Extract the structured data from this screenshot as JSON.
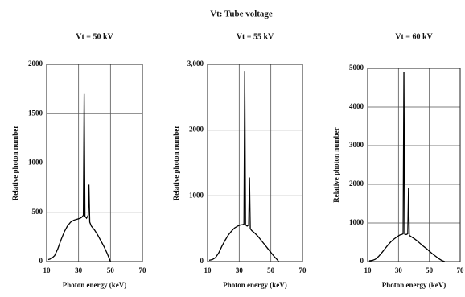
{
  "title": "Vt: Tube voltage",
  "chart_data": [
    {
      "type": "line",
      "title": "Vt = 50 kV",
      "xlabel": "Photon energy (keV)",
      "ylabel": "Relative photon number",
      "x": [
        11,
        13,
        15,
        17,
        19,
        21,
        23,
        25,
        27,
        29,
        31,
        32,
        33,
        33.5,
        34,
        35,
        36,
        36.5,
        37,
        38,
        40,
        42,
        44,
        46,
        48,
        50
      ],
      "values": [
        20,
        30,
        60,
        130,
        220,
        300,
        360,
        400,
        420,
        430,
        440,
        450,
        470,
        1700,
        460,
        440,
        470,
        780,
        400,
        360,
        320,
        270,
        210,
        150,
        80,
        0
      ],
      "color": "#000000",
      "xlim": [
        10,
        70
      ],
      "xticks": [
        10,
        30,
        50,
        70
      ],
      "ylim": [
        0,
        2000
      ],
      "yticks": [
        0,
        500,
        1000,
        1500,
        2000
      ],
      "grid": true
    },
    {
      "type": "line",
      "title": "Vt = 55 kV",
      "xlabel": "Photon energy (keV)",
      "ylabel": "Relative photon number",
      "x": [
        11,
        13,
        15,
        17,
        19,
        21,
        23,
        25,
        27,
        29,
        31,
        32,
        33,
        33.5,
        34,
        35,
        36,
        36.5,
        37,
        38,
        40,
        42,
        44,
        46,
        48,
        50,
        52,
        54,
        55
      ],
      "values": [
        20,
        30,
        60,
        130,
        230,
        320,
        400,
        460,
        510,
        540,
        560,
        560,
        570,
        2900,
        560,
        540,
        560,
        1280,
        500,
        470,
        430,
        380,
        320,
        260,
        200,
        140,
        80,
        30,
        0
      ],
      "color": "#000000",
      "xlim": [
        10,
        70
      ],
      "xticks": [
        10,
        30,
        50,
        70
      ],
      "ylim": [
        0,
        3000
      ],
      "yticks": [
        0,
        1000,
        2000,
        {
          "value": 3000,
          "label": "3,000"
        }
      ],
      "grid": true
    },
    {
      "type": "line",
      "title": "Vt = 60 kV",
      "xlabel": "Photon energy (keV)",
      "ylabel": "Relative photon number",
      "x": [
        11,
        13,
        15,
        17,
        19,
        21,
        23,
        25,
        27,
        29,
        31,
        32,
        33,
        33.5,
        34,
        35,
        36,
        36.5,
        37,
        38,
        40,
        42,
        44,
        46,
        48,
        50,
        52,
        54,
        56,
        58,
        60
      ],
      "values": [
        20,
        30,
        60,
        130,
        220,
        320,
        420,
        510,
        580,
        640,
        690,
        700,
        720,
        4900,
        710,
        700,
        720,
        1900,
        680,
        650,
        600,
        540,
        470,
        400,
        340,
        270,
        200,
        140,
        80,
        30,
        0
      ],
      "color": "#000000",
      "xlim": [
        10,
        70
      ],
      "xticks": [
        10,
        30,
        50,
        70
      ],
      "ylim": [
        0,
        5000
      ],
      "yticks": [
        0,
        1000,
        2000,
        3000,
        4000,
        5000
      ],
      "grid": true
    }
  ]
}
